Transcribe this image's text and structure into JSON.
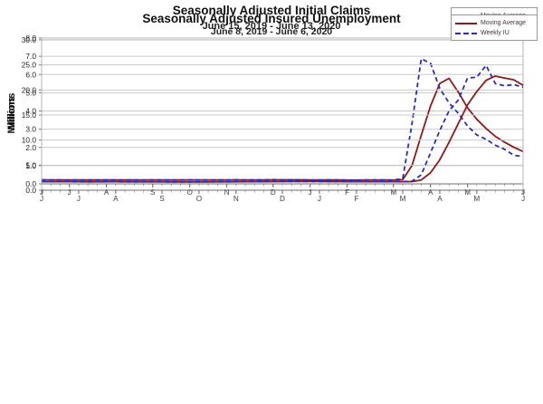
{
  "page": {
    "background": "#ffffff"
  },
  "chart_data": [
    {
      "type": "line",
      "title": "Seasonally Adjusted Initial Claims",
      "subtitle": "June 15, 2019 - June 13, 2020",
      "ylabel": "Millions",
      "ylim": [
        0.0,
        8.0
      ],
      "ytick_step": 1.0,
      "grid": "horizontal",
      "legend_position": "top-right",
      "x_unit": "weeks",
      "month_ticks": [
        {
          "label": "J",
          "i": 0
        },
        {
          "label": "J",
          "i": 3
        },
        {
          "label": "A",
          "i": 7
        },
        {
          "label": "S",
          "i": 12
        },
        {
          "label": "O",
          "i": 16
        },
        {
          "label": "N",
          "i": 20
        },
        {
          "label": "D",
          "i": 25
        },
        {
          "label": "J",
          "i": 29
        },
        {
          "label": "F",
          "i": 33
        },
        {
          "label": "M",
          "i": 38
        },
        {
          "label": "A",
          "i": 42
        },
        {
          "label": "M",
          "i": 46
        },
        {
          "label": "J",
          "i": 52
        }
      ],
      "series": [
        {
          "name": "Moving Average",
          "color": "#8b1b1b",
          "style": "solid",
          "values": [
            0.218,
            0.218,
            0.217,
            0.215,
            0.214,
            0.213,
            0.214,
            0.215,
            0.215,
            0.214,
            0.213,
            0.213,
            0.214,
            0.214,
            0.213,
            0.214,
            0.215,
            0.215,
            0.215,
            0.214,
            0.215,
            0.217,
            0.216,
            0.216,
            0.219,
            0.222,
            0.224,
            0.225,
            0.223,
            0.218,
            0.214,
            0.214,
            0.213,
            0.212,
            0.211,
            0.211,
            0.212,
            0.213,
            0.212,
            0.232,
            1.004,
            2.666,
            4.268,
            5.507,
            5.79,
            5.04,
            4.173,
            3.543,
            3.042,
            2.608,
            2.288,
            2.008,
            1.774
          ]
        },
        {
          "name": "Weekly IC",
          "color": "#2d2dae",
          "style": "dashed",
          "values": [
            0.222,
            0.217,
            0.216,
            0.209,
            0.216,
            0.211,
            0.219,
            0.216,
            0.214,
            0.208,
            0.217,
            0.21,
            0.218,
            0.213,
            0.21,
            0.215,
            0.22,
            0.212,
            0.218,
            0.214,
            0.211,
            0.226,
            0.213,
            0.216,
            0.223,
            0.234,
            0.222,
            0.22,
            0.217,
            0.212,
            0.208,
            0.22,
            0.217,
            0.206,
            0.203,
            0.217,
            0.22,
            0.211,
            0.211,
            0.282,
            3.307,
            6.867,
            6.615,
            5.237,
            4.442,
            3.867,
            3.176,
            2.687,
            2.446,
            2.123,
            1.897,
            1.566,
            1.508
          ]
        }
      ]
    },
    {
      "type": "line",
      "title": "Seasonally Adjusted Insured Unemployment",
      "subtitle": "June 8, 2019 - June 6, 2020",
      "ylabel": "Millions",
      "ylim": [
        0.0,
        30.0
      ],
      "ytick_step": 5.0,
      "grid": "horizontal",
      "legend_position": "top-right",
      "x_unit": "weeks",
      "month_ticks": [
        {
          "label": "J",
          "i": 0
        },
        {
          "label": "J",
          "i": 4
        },
        {
          "label": "A",
          "i": 8
        },
        {
          "label": "S",
          "i": 13
        },
        {
          "label": "O",
          "i": 17
        },
        {
          "label": "N",
          "i": 21
        },
        {
          "label": "D",
          "i": 26
        },
        {
          "label": "J",
          "i": 30
        },
        {
          "label": "F",
          "i": 34
        },
        {
          "label": "M",
          "i": 39
        },
        {
          "label": "A",
          "i": 43
        },
        {
          "label": "M",
          "i": 47
        },
        {
          "label": "J",
          "i": 52
        }
      ],
      "series": [
        {
          "name": "Moving Average",
          "color": "#8b1b1b",
          "style": "solid",
          "values": [
            1.695,
            1.697,
            1.698,
            1.695,
            1.691,
            1.687,
            1.684,
            1.686,
            1.689,
            1.686,
            1.679,
            1.673,
            1.669,
            1.669,
            1.664,
            1.658,
            1.653,
            1.656,
            1.662,
            1.667,
            1.674,
            1.68,
            1.688,
            1.697,
            1.707,
            1.719,
            1.73,
            1.74,
            1.746,
            1.745,
            1.739,
            1.729,
            1.718,
            1.709,
            1.702,
            1.696,
            1.693,
            1.694,
            1.697,
            1.7,
            1.727,
            2.042,
            3.483,
            6.058,
            9.56,
            13.298,
            17.038,
            19.689,
            21.914,
            22.776,
            22.392,
            22.026,
            20.934
          ]
        },
        {
          "name": "Weekly IU",
          "color": "#2d2dae",
          "style": "dashed",
          "values": [
            1.693,
            1.699,
            1.701,
            1.688,
            1.676,
            1.682,
            1.69,
            1.695,
            1.688,
            1.672,
            1.663,
            1.668,
            1.674,
            1.669,
            1.655,
            1.649,
            1.658,
            1.662,
            1.671,
            1.678,
            1.684,
            1.69,
            1.701,
            1.712,
            1.725,
            1.738,
            1.744,
            1.752,
            1.748,
            1.735,
            1.72,
            1.712,
            1.705,
            1.698,
            1.692,
            1.688,
            1.695,
            1.701,
            1.702,
            1.702,
            1.803,
            3.059,
            7.446,
            11.914,
            15.819,
            18.011,
            22.377,
            22.548,
            24.912,
            21.268,
            20.841,
            21.082,
            20.544
          ]
        }
      ]
    }
  ]
}
